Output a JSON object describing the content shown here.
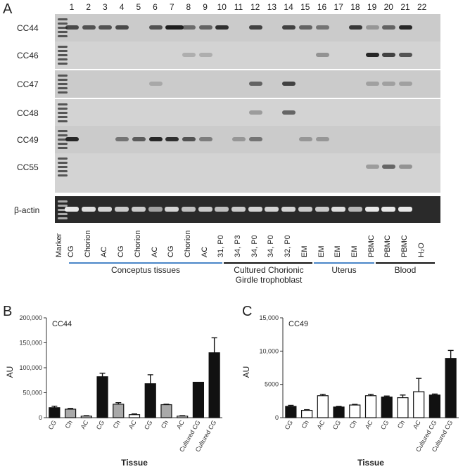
{
  "panel_a": {
    "letter": "A",
    "lane_numbers": [
      "1",
      "2",
      "3",
      "4",
      "5",
      "6",
      "7",
      "8",
      "9",
      "10",
      "11",
      "12",
      "13",
      "14",
      "15",
      "16",
      "17",
      "18",
      "19",
      "20",
      "21",
      "22"
    ],
    "rows": [
      "CC44",
      "CC46",
      "CC47",
      "CC48",
      "CC49",
      "CC55"
    ],
    "actin_label": "β-actin",
    "lane_labels": [
      "Marker",
      "CG",
      "Chorion",
      "AC",
      "CG",
      "Chorion",
      "AC",
      "CG",
      "Chorion",
      "AC",
      "31, P0",
      "34, P3",
      "34, P0",
      "34, P0",
      "32, P0",
      "EM",
      "EM",
      "EM",
      "EM",
      "PBMC",
      "PBMC",
      "PBMC",
      "H₂O"
    ],
    "groups": [
      {
        "label": "Conceptus tissues",
        "color": "#4a86c8"
      },
      {
        "label": "Cultured Chorionic\nGirdle trophoblast",
        "color": "#111111"
      },
      {
        "label": "Uterus",
        "color": "#4a86c8"
      },
      {
        "label": "Blood",
        "color": "#111111"
      }
    ]
  },
  "panel_b": {
    "letter": "B",
    "title": "CC44",
    "ylabel": "AU",
    "xlabel": "Tissue",
    "ticks": [
      "0",
      "50,000",
      "100,000",
      "150,000",
      "200,000"
    ],
    "categories": [
      "CG",
      "Ch",
      "AC",
      "CG",
      "Ch",
      "AC",
      "CG",
      "Ch",
      "AC",
      "Cultured CG",
      "Cultured CG"
    ]
  },
  "panel_c": {
    "letter": "C",
    "title": "CC49",
    "ylabel": "AU",
    "xlabel": "Tissue",
    "ticks": [
      "0",
      "5000",
      "10,000",
      "15,000"
    ],
    "categories": [
      "CG",
      "Ch",
      "AC",
      "CG",
      "Ch",
      "AC",
      "CG",
      "Ch",
      "AC",
      "Cultured CG",
      "Cultured CG"
    ]
  },
  "chart_data": [
    {
      "type": "bar",
      "title": "CC44",
      "xlabel": "Tissue",
      "ylabel": "AU",
      "ylim": [
        0,
        200000
      ],
      "categories": [
        "CG",
        "Ch",
        "AC",
        "CG",
        "Ch",
        "AC",
        "CG",
        "Ch",
        "AC",
        "Cultured CG",
        "Cultured CG"
      ],
      "values": [
        20000,
        17000,
        3000,
        82000,
        27000,
        6000,
        68000,
        26000,
        3000,
        71000,
        130000
      ],
      "errors": [
        3000,
        1500,
        1000,
        7000,
        3000,
        1500,
        18000,
        1000,
        1000,
        0,
        30000
      ],
      "colors": [
        "#111111",
        "#a9a9a9",
        "#ffffff",
        "#111111",
        "#a9a9a9",
        "#ffffff",
        "#111111",
        "#a9a9a9",
        "#ffffff",
        "#111111",
        "#111111"
      ]
    },
    {
      "type": "bar",
      "title": "CC49",
      "xlabel": "Tissue",
      "ylabel": "AU",
      "ylim": [
        0,
        15000
      ],
      "categories": [
        "CG",
        "Ch",
        "AC",
        "CG",
        "Ch",
        "AC",
        "CG",
        "Ch",
        "AC",
        "Cultured CG",
        "Cultured CG"
      ],
      "values": [
        1700,
        1100,
        3300,
        1600,
        1900,
        3300,
        3100,
        3000,
        3900,
        3400,
        8900
      ],
      "errors": [
        150,
        100,
        200,
        100,
        100,
        200,
        150,
        400,
        2000,
        150,
        1200
      ],
      "colors": [
        "#111111",
        "#ffffff",
        "#ffffff",
        "#111111",
        "#ffffff",
        "#ffffff",
        "#111111",
        "#ffffff",
        "#ffffff",
        "#111111",
        "#111111"
      ]
    }
  ]
}
